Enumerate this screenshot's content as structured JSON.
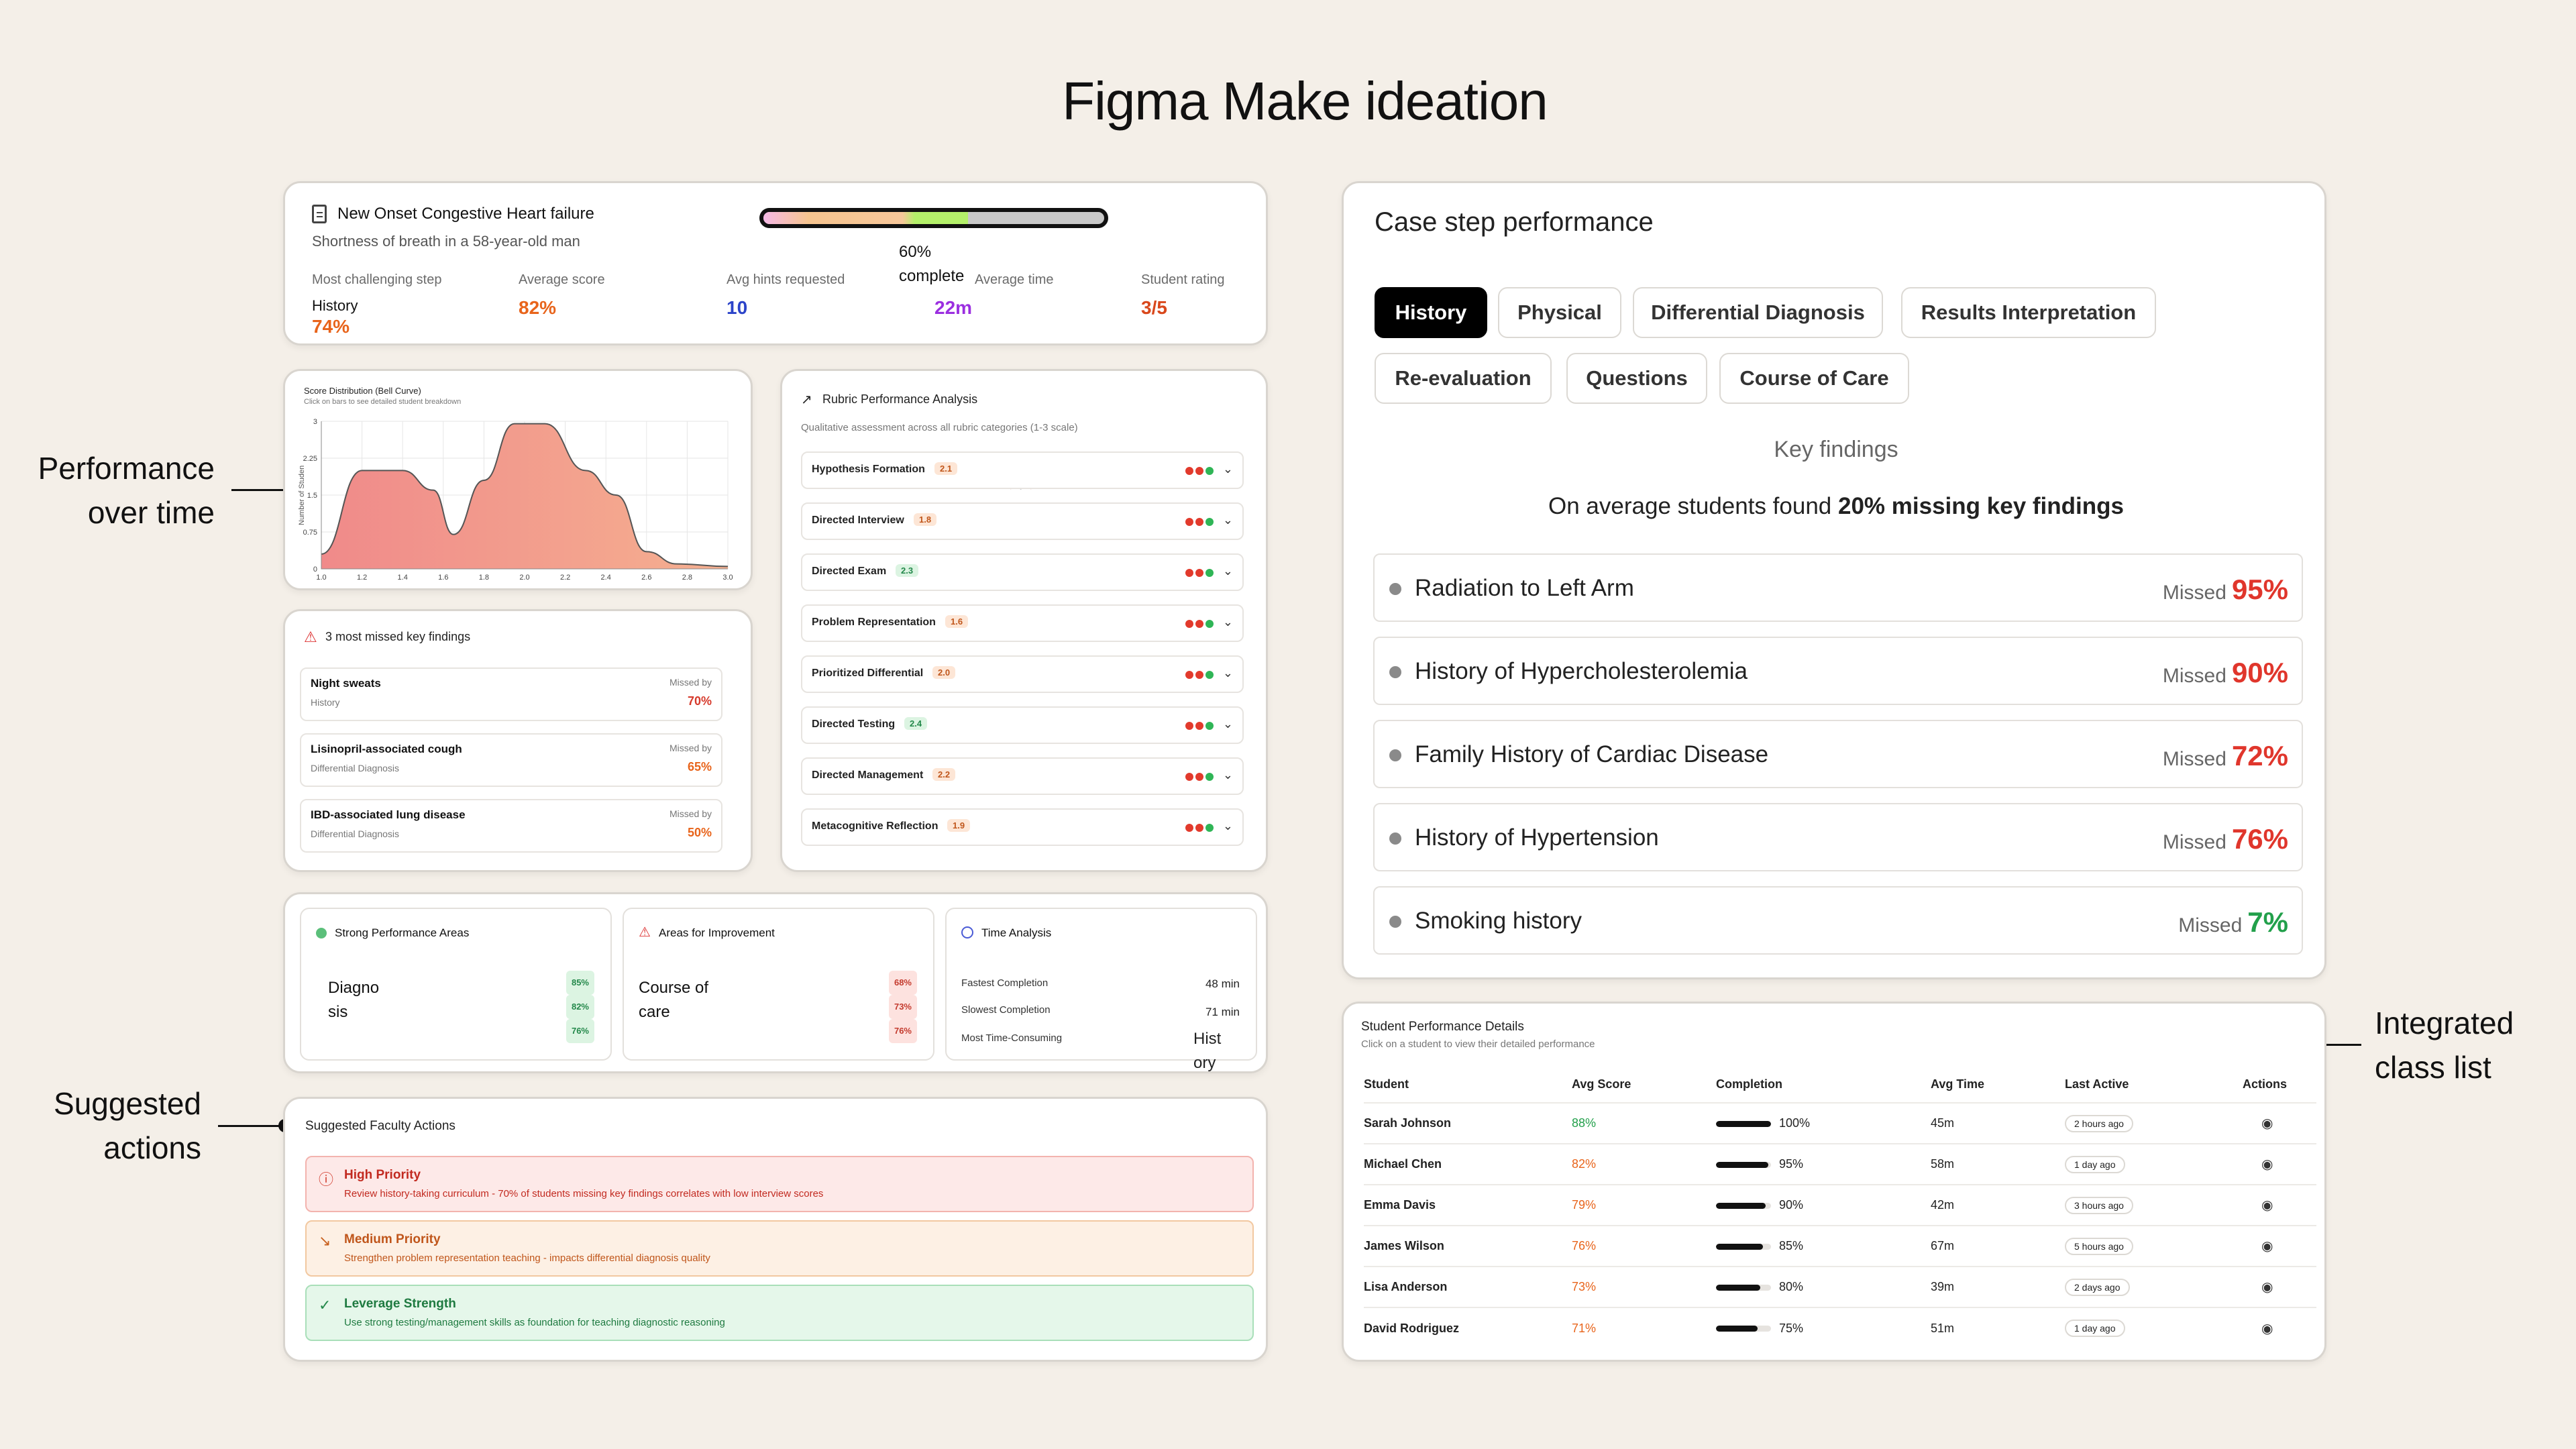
{
  "page_title": "Figma Make ideation",
  "annotations": {
    "performance": "Performance over time",
    "suggested": "Suggested actions",
    "integrated": "Integrated class list"
  },
  "summary": {
    "case_title": "New Onset Congestive Heart failure",
    "case_subtitle": "Shortness of breath in a 58-year-old man",
    "progress_pct": "60%",
    "progress_label": "complete",
    "progress_value": 0.6,
    "stats": [
      {
        "label": "Most challenging step",
        "sub": "History",
        "value": "74%",
        "color": "#e8641b"
      },
      {
        "label": "Average score",
        "value": "82%",
        "color": "#e8641b"
      },
      {
        "label": "Avg hints requested",
        "value": "10",
        "color": "#2c44c9"
      },
      {
        "label": "Average time",
        "value": "22m",
        "color": "#9b2fe0"
      },
      {
        "label": "Student rating",
        "value": "3/5",
        "color": "#d9481c"
      }
    ]
  },
  "chart_data": {
    "type": "area",
    "title": "Score Distribution (Bell Curve)",
    "subtitle": "Click on bars to see detailed student breakdown",
    "ylabel": "Number of Studen",
    "x": [
      1.0,
      1.2,
      1.4,
      1.55,
      1.65,
      1.8,
      1.95,
      2.1,
      2.3,
      2.45,
      2.6,
      2.75,
      3.0
    ],
    "y": [
      0.3,
      2.0,
      2.0,
      1.6,
      0.7,
      1.8,
      2.95,
      2.95,
      2.0,
      1.5,
      0.35,
      0.1,
      0.05
    ],
    "xlim": [
      1.0,
      3.0
    ],
    "ylim": [
      0,
      3
    ],
    "xticks": [
      "1.0",
      "1.2",
      "1.4",
      "1.6",
      "1.8",
      "2.0",
      "2.2",
      "2.4",
      "2.6",
      "2.8",
      "3.0"
    ],
    "yticks": [
      "0",
      "0.75",
      "1.5",
      "2.25",
      "3"
    ],
    "grid": true
  },
  "missed": {
    "title": "3 most missed key findings",
    "missed_by": "Missed by",
    "items": [
      {
        "name": "Night sweats",
        "cat": "History",
        "pct": "70%"
      },
      {
        "name": "Lisinopril-associated cough",
        "cat": "Differential Diagnosis",
        "pct": "65%"
      },
      {
        "name": "IBD-associated lung disease",
        "cat": "Differential Diagnosis",
        "pct": "50%"
      }
    ]
  },
  "rubric": {
    "title": "Rubric Performance Analysis",
    "subtitle": "Qualitative assessment across all rubric categories (1-3 scale)",
    "items": [
      {
        "label": "Hypothesis Formation",
        "score": "2.1",
        "tone": "orange"
      },
      {
        "label": "Directed Interview",
        "score": "1.8",
        "tone": "orange"
      },
      {
        "label": "Directed Exam",
        "score": "2.3",
        "tone": "green"
      },
      {
        "label": "Problem Representation",
        "score": "1.6",
        "tone": "orange"
      },
      {
        "label": "Prioritized Differential",
        "score": "2.0",
        "tone": "orange"
      },
      {
        "label": "Directed Testing",
        "score": "2.4",
        "tone": "green"
      },
      {
        "label": "Directed Management",
        "score": "2.2",
        "tone": "orange"
      },
      {
        "label": "Metacognitive Reflection",
        "score": "1.9",
        "tone": "orange"
      }
    ]
  },
  "areas": {
    "strong": {
      "title": "Strong Performance Areas",
      "text1": "Diagno",
      "text2": "sis",
      "badges": [
        "85%",
        "82%",
        "76%"
      ]
    },
    "improve": {
      "title": "Areas for Improvement",
      "text1": "Course of",
      "text2": "care",
      "badges": [
        "68%",
        "73%",
        "76%"
      ]
    },
    "time": {
      "title": "Time Analysis",
      "rows": [
        {
          "label": "Fastest Completion",
          "value": "48 min"
        },
        {
          "label": "Slowest Completion",
          "value": "71 min"
        },
        {
          "label": "Most Time-Consuming",
          "value1": "Hist",
          "value2": "ory"
        }
      ]
    }
  },
  "actions": {
    "title": "Suggested Faculty Actions",
    "items": [
      {
        "title": "High Priority",
        "desc": "Review history-taking curriculum - 70% of students missing key findings correlates with low interview scores"
      },
      {
        "title": "Medium Priority",
        "desc": "Strengthen problem representation teaching - impacts differential diagnosis quality"
      },
      {
        "title": "Leverage Strength",
        "desc": "Use strong testing/management skills as foundation for teaching diagnostic reasoning"
      }
    ]
  },
  "case_step": {
    "title": "Case step performance",
    "tabs": [
      "History",
      "Physical",
      "Differential Diagnosis",
      "Results Interpretation",
      "Re-evaluation",
      "Questions",
      "Course of Care"
    ],
    "section": "Key findings",
    "summary_pre": "On average students found",
    "summary_bold": "20% missing key findings",
    "missed_label": "Missed",
    "findings": [
      {
        "name": "Radiation to Left Arm",
        "pct": "95%",
        "color": "#e0362c"
      },
      {
        "name": "History of Hypercholesterolemia",
        "pct": "90%",
        "color": "#e0362c"
      },
      {
        "name": "Family History of Cardiac Disease",
        "pct": "72%",
        "color": "#e0362c"
      },
      {
        "name": "History of Hypertension",
        "pct": "76%",
        "color": "#e0362c"
      },
      {
        "name": "Smoking history",
        "pct": "7%",
        "color": "#22a04b"
      }
    ]
  },
  "students": {
    "title": "Student Performance Details",
    "subtitle": "Click on a student to view their detailed performance",
    "headers": [
      "Student",
      "Avg Score",
      "Completion",
      "Avg Time",
      "Last Active",
      "Actions"
    ],
    "rows": [
      {
        "name": "Sarah Johnson",
        "score": "88%",
        "score_color": "#23a04b",
        "completion": "100%",
        "completion_value": 1.0,
        "time": "45m",
        "last": "2 hours ago"
      },
      {
        "name": "Michael Chen",
        "score": "82%",
        "score_color": "#e8641b",
        "completion": "95%",
        "completion_value": 0.95,
        "time": "58m",
        "last": "1 day ago"
      },
      {
        "name": "Emma Davis",
        "score": "79%",
        "score_color": "#e8641b",
        "completion": "90%",
        "completion_value": 0.9,
        "time": "42m",
        "last": "3 hours ago"
      },
      {
        "name": "James Wilson",
        "score": "76%",
        "score_color": "#e8641b",
        "completion": "85%",
        "completion_value": 0.85,
        "time": "67m",
        "last": "5 hours ago"
      },
      {
        "name": "Lisa Anderson",
        "score": "73%",
        "score_color": "#e8641b",
        "completion": "80%",
        "completion_value": 0.8,
        "time": "39m",
        "last": "2 days ago"
      },
      {
        "name": "David Rodriguez",
        "score": "71%",
        "score_color": "#e8641b",
        "completion": "75%",
        "completion_value": 0.75,
        "time": "51m",
        "last": "1 day ago"
      }
    ]
  }
}
